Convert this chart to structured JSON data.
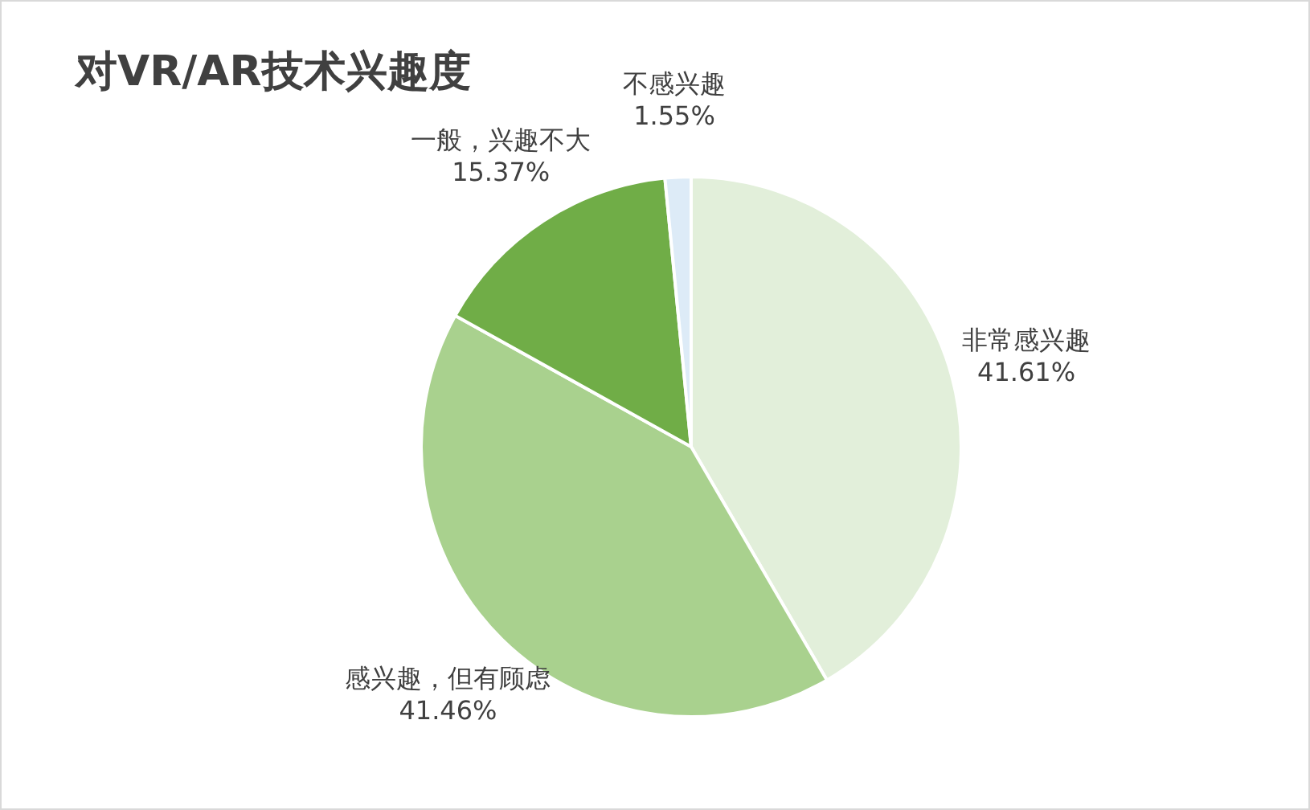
{
  "chart_data": {
    "type": "pie",
    "title": "对VR/AR技术兴趣度",
    "categories": [
      "非常感兴趣",
      "感兴趣，但有顾虑",
      "一般，兴趣不大",
      "不感兴趣"
    ],
    "values": [
      41.61,
      41.46,
      15.37,
      1.55
    ],
    "value_labels": [
      "41.61%",
      "41.46%",
      "15.37%",
      "1.55%"
    ],
    "colors": [
      "#e2efda",
      "#a9d18e",
      "#70ad47",
      "#ddebf7"
    ],
    "legend": false
  }
}
